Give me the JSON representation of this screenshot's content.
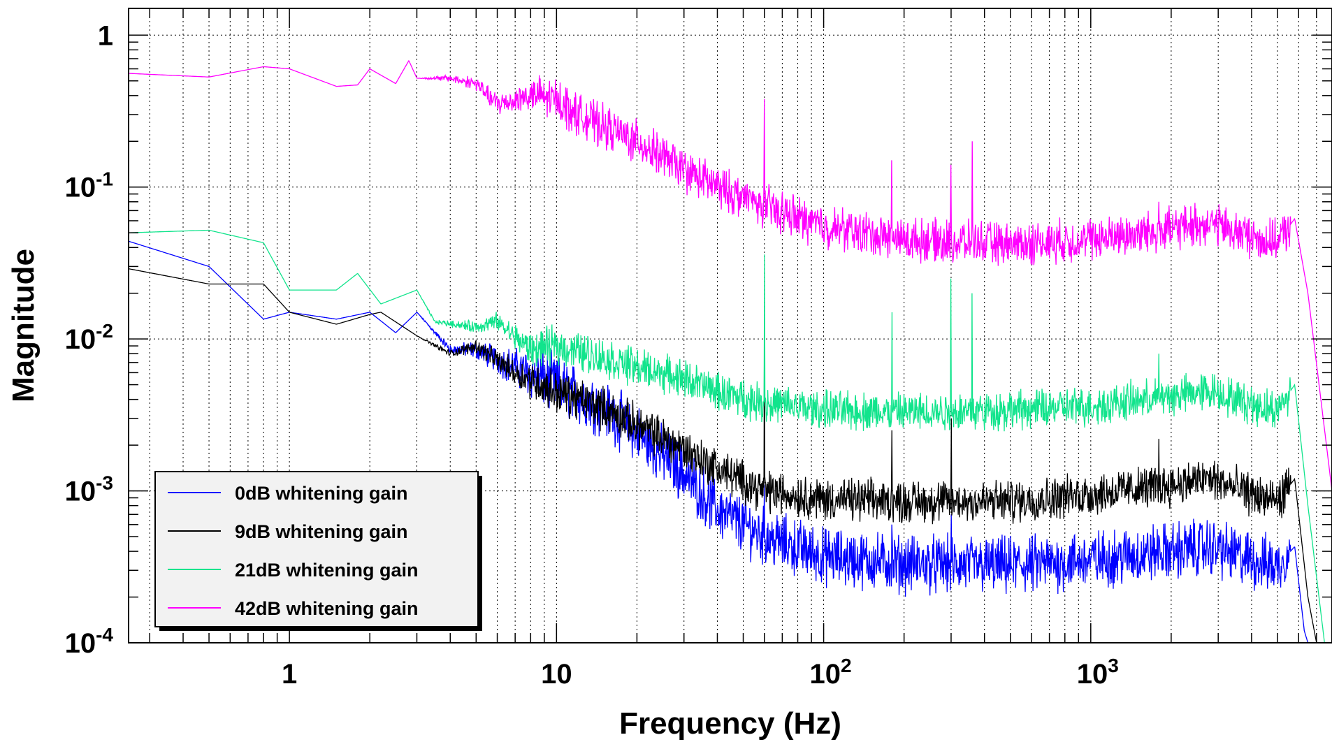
{
  "chart_data": {
    "type": "line",
    "title": "",
    "xlabel": "Frequency (Hz)",
    "ylabel": "Magnitude",
    "xscale": "log",
    "yscale": "log",
    "xlim": [
      0.25,
      8000
    ],
    "ylim": [
      0.0001,
      1.5
    ],
    "grid": true,
    "legend_position": "bottom-left",
    "x_ticks": [
      {
        "value": 1,
        "base": "1",
        "exp": ""
      },
      {
        "value": 10,
        "base": "10",
        "exp": ""
      },
      {
        "value": 100,
        "base": "10",
        "exp": "2"
      },
      {
        "value": 1000,
        "base": "10",
        "exp": "3"
      }
    ],
    "y_ticks": [
      {
        "value": 1,
        "base": "1",
        "exp": ""
      },
      {
        "value": 0.1,
        "base": "10",
        "exp": "-1"
      },
      {
        "value": 0.01,
        "base": "10",
        "exp": "-2"
      },
      {
        "value": 0.001,
        "base": "10",
        "exp": "-3"
      },
      {
        "value": 0.0001,
        "base": "10",
        "exp": "-4"
      }
    ],
    "series": [
      {
        "name": "0dB whitening gain",
        "color": "#0000ff",
        "noise": 0.3,
        "points": [
          [
            0.25,
            0.044
          ],
          [
            0.5,
            0.03
          ],
          [
            0.8,
            0.0135
          ],
          [
            1.0,
            0.015
          ],
          [
            1.5,
            0.0135
          ],
          [
            2.0,
            0.015
          ],
          [
            2.5,
            0.011
          ],
          [
            3.0,
            0.015
          ],
          [
            4,
            0.0085
          ],
          [
            5,
            0.0085
          ],
          [
            7,
            0.0065
          ],
          [
            10,
            0.005
          ],
          [
            15,
            0.0035
          ],
          [
            20,
            0.0024
          ],
          [
            30,
            0.0013
          ],
          [
            40,
            0.00075
          ],
          [
            60,
            0.0005
          ],
          [
            100,
            0.00037
          ],
          [
            200,
            0.00033
          ],
          [
            500,
            0.00032
          ],
          [
            1000,
            0.00035
          ],
          [
            2000,
            0.0004
          ],
          [
            2800,
            0.00043
          ],
          [
            4000,
            0.00035
          ],
          [
            5000,
            0.00032
          ],
          [
            5800,
            0.00043
          ],
          [
            6300,
            0.00012
          ],
          [
            6500,
            0.0001
          ]
        ],
        "spikes": [
          [
            60,
            0.0011
          ],
          [
            180,
            0.0006
          ],
          [
            300,
            0.0007
          ],
          [
            1800,
            0.0005
          ]
        ]
      },
      {
        "name": "9dB whitening gain",
        "color": "#000000",
        "noise": 0.22,
        "points": [
          [
            0.25,
            0.029
          ],
          [
            0.5,
            0.023
          ],
          [
            0.8,
            0.023
          ],
          [
            1.0,
            0.015
          ],
          [
            1.5,
            0.0125
          ],
          [
            2.0,
            0.0145
          ],
          [
            2.2,
            0.015
          ],
          [
            3.0,
            0.0105
          ],
          [
            4,
            0.008
          ],
          [
            5,
            0.009
          ],
          [
            7,
            0.006
          ],
          [
            10,
            0.0045
          ],
          [
            15,
            0.0035
          ],
          [
            20,
            0.0027
          ],
          [
            30,
            0.0019
          ],
          [
            40,
            0.0014
          ],
          [
            60,
            0.001
          ],
          [
            100,
            0.00088
          ],
          [
            200,
            0.00085
          ],
          [
            500,
            0.00085
          ],
          [
            1000,
            0.00095
          ],
          [
            2000,
            0.0011
          ],
          [
            2800,
            0.0012
          ],
          [
            4000,
            0.00095
          ],
          [
            5000,
            0.00085
          ],
          [
            5800,
            0.0012
          ],
          [
            6500,
            0.0002
          ],
          [
            7000,
            0.0001
          ]
        ],
        "spikes": [
          [
            60,
            0.011
          ],
          [
            180,
            0.0025
          ],
          [
            300,
            0.003
          ],
          [
            1800,
            0.0022
          ]
        ]
      },
      {
        "name": "21dB whitening gain",
        "color": "#11e48c",
        "noise": 0.2,
        "points": [
          [
            0.25,
            0.05
          ],
          [
            0.5,
            0.052
          ],
          [
            0.8,
            0.043
          ],
          [
            1.0,
            0.021
          ],
          [
            1.5,
            0.021
          ],
          [
            1.8,
            0.027
          ],
          [
            2.2,
            0.017
          ],
          [
            3.0,
            0.021
          ],
          [
            3.5,
            0.013
          ],
          [
            5,
            0.012
          ],
          [
            6,
            0.013
          ],
          [
            8,
            0.0085
          ],
          [
            10,
            0.009
          ],
          [
            15,
            0.0075
          ],
          [
            20,
            0.0065
          ],
          [
            30,
            0.0055
          ],
          [
            40,
            0.0045
          ],
          [
            60,
            0.0038
          ],
          [
            100,
            0.0034
          ],
          [
            200,
            0.0033
          ],
          [
            500,
            0.0034
          ],
          [
            1000,
            0.0036
          ],
          [
            2000,
            0.0042
          ],
          [
            2800,
            0.0046
          ],
          [
            4000,
            0.0037
          ],
          [
            5000,
            0.0034
          ],
          [
            5800,
            0.005
          ],
          [
            6500,
            0.0008
          ],
          [
            7500,
            0.0001
          ]
        ],
        "spikes": [
          [
            60,
            0.036
          ],
          [
            180,
            0.015
          ],
          [
            300,
            0.025
          ],
          [
            360,
            0.02
          ],
          [
            1800,
            0.008
          ]
        ]
      },
      {
        "name": "42dB whitening gain",
        "color": "#ff00ff",
        "noise": 0.22,
        "points": [
          [
            0.25,
            0.56
          ],
          [
            0.5,
            0.53
          ],
          [
            0.8,
            0.62
          ],
          [
            1.0,
            0.6
          ],
          [
            1.5,
            0.46
          ],
          [
            1.8,
            0.47
          ],
          [
            2.0,
            0.6
          ],
          [
            2.5,
            0.48
          ],
          [
            2.8,
            0.68
          ],
          [
            3.0,
            0.52
          ],
          [
            4,
            0.52
          ],
          [
            5,
            0.48
          ],
          [
            6,
            0.35
          ],
          [
            8,
            0.4
          ],
          [
            10,
            0.38
          ],
          [
            12,
            0.3
          ],
          [
            15,
            0.25
          ],
          [
            20,
            0.2
          ],
          [
            30,
            0.13
          ],
          [
            40,
            0.1
          ],
          [
            60,
            0.075
          ],
          [
            100,
            0.055
          ],
          [
            200,
            0.045
          ],
          [
            500,
            0.042
          ],
          [
            1000,
            0.045
          ],
          [
            2000,
            0.053
          ],
          [
            2800,
            0.058
          ],
          [
            4000,
            0.047
          ],
          [
            5000,
            0.043
          ],
          [
            5800,
            0.062
          ],
          [
            6500,
            0.02
          ],
          [
            8000,
            0.001
          ]
        ],
        "spikes": [
          [
            60,
            0.38
          ],
          [
            180,
            0.15
          ],
          [
            300,
            0.14
          ],
          [
            360,
            0.2
          ],
          [
            1800,
            0.08
          ]
        ]
      }
    ]
  }
}
